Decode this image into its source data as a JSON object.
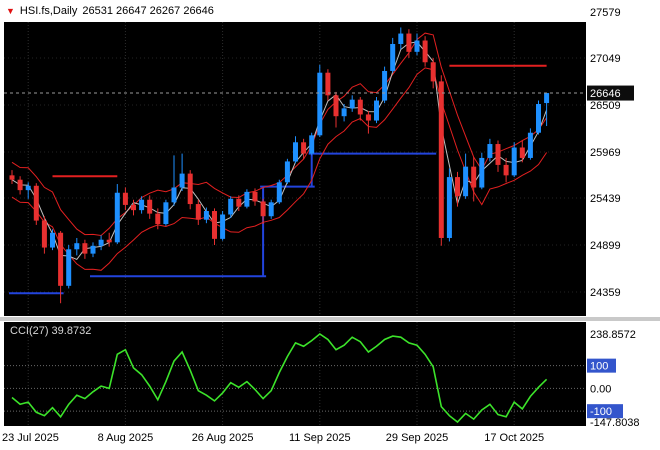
{
  "title": {
    "marker": "▼",
    "symbol_period": "HSI.fs,Daily",
    "ohlc_values": "26531 26647 26267 26646"
  },
  "colors": {
    "plot_bg": "#000000",
    "up_candle": "#1e90ff",
    "down_candle": "#e83030",
    "ma_fast": "#c0c0c0",
    "envelope": "#e32020",
    "step_line": "#2244dd",
    "hline": "#e32020",
    "cci_line": "#3ce32a",
    "level_badge": "#3355cc",
    "current_price_badge": "#0d0d0d"
  },
  "chart_data": {
    "type": "candlestick",
    "symbol": "HSI.fs",
    "period": "Daily",
    "main": {
      "price_axis_labels": [
        "27579",
        "27049",
        "26509",
        "25969",
        "25439",
        "24899",
        "24359"
      ],
      "current_price": "26646",
      "ohlc_display": {
        "open": "26531",
        "high": "26647",
        "low": "26267",
        "close": "26646"
      },
      "ma_fast_period": 3,
      "envelope_period": 6,
      "envelope_offset": 200,
      "candles": [
        [
          25700,
          25760,
          25600,
          25650
        ],
        [
          25650,
          25690,
          25480,
          25530
        ],
        [
          25530,
          25620,
          25430,
          25580
        ],
        [
          25580,
          25610,
          25130,
          25180
        ],
        [
          25180,
          25230,
          24800,
          24870
        ],
        [
          24870,
          25080,
          24840,
          25040
        ],
        [
          25040,
          25060,
          24230,
          24430
        ],
        [
          24430,
          24900,
          24400,
          24850
        ],
        [
          24850,
          24980,
          24780,
          24920
        ],
        [
          24920,
          24960,
          24740,
          24800
        ],
        [
          24800,
          24930,
          24760,
          24890
        ],
        [
          24890,
          25010,
          24840,
          24960
        ],
        [
          24960,
          25040,
          24880,
          24930
        ],
        [
          24930,
          25600,
          24910,
          25500
        ],
        [
          25500,
          25560,
          25300,
          25360
        ],
        [
          25360,
          25420,
          25240,
          25300
        ],
        [
          25300,
          25460,
          25260,
          25420
        ],
        [
          25420,
          25470,
          25200,
          25260
        ],
        [
          25260,
          25320,
          25080,
          25140
        ],
        [
          25140,
          25420,
          25120,
          25390
        ],
        [
          25390,
          25930,
          25350,
          25560
        ],
        [
          25560,
          25950,
          25520,
          25720
        ],
        [
          25720,
          25760,
          25310,
          25370
        ],
        [
          25370,
          25420,
          25130,
          25190
        ],
        [
          25190,
          25330,
          25150,
          25290
        ],
        [
          25290,
          25320,
          24900,
          24970
        ],
        [
          24970,
          25290,
          24950,
          25250
        ],
        [
          25250,
          25460,
          25210,
          25430
        ],
        [
          25430,
          25470,
          25290,
          25340
        ],
        [
          25340,
          25540,
          25320,
          25510
        ],
        [
          25510,
          25550,
          25350,
          25400
        ],
        [
          25400,
          25430,
          25140,
          25230
        ],
        [
          25230,
          25420,
          25200,
          25390
        ],
        [
          25390,
          25650,
          25370,
          25620
        ],
        [
          25620,
          25890,
          25600,
          25860
        ],
        [
          25860,
          26150,
          25840,
          26080
        ],
        [
          26080,
          26120,
          25890,
          25950
        ],
        [
          25950,
          26190,
          25930,
          26160
        ],
        [
          26160,
          26970,
          26140,
          26880
        ],
        [
          26880,
          26920,
          26560,
          26620
        ],
        [
          26620,
          26660,
          26250,
          26380
        ],
        [
          26380,
          26520,
          26320,
          26470
        ],
        [
          26470,
          26620,
          26430,
          26570
        ],
        [
          26570,
          26600,
          26330,
          26400
        ],
        [
          26400,
          26440,
          26180,
          26330
        ],
        [
          26330,
          26600,
          26300,
          26560
        ],
        [
          26560,
          26950,
          26530,
          26900
        ],
        [
          26900,
          27280,
          26880,
          27210
        ],
        [
          27210,
          27400,
          27150,
          27330
        ],
        [
          27330,
          27380,
          27050,
          27120
        ],
        [
          27120,
          27330,
          27080,
          27250
        ],
        [
          27250,
          27300,
          26950,
          27000
        ],
        [
          27000,
          27050,
          26700,
          26780
        ],
        [
          26780,
          26850,
          24890,
          24980
        ],
        [
          24980,
          25780,
          24940,
          25680
        ],
        [
          25680,
          25740,
          25340,
          25460
        ],
        [
          25460,
          25950,
          25430,
          25800
        ],
        [
          25800,
          25910,
          25400,
          25560
        ],
        [
          25560,
          25960,
          25540,
          25900
        ],
        [
          25900,
          26120,
          25860,
          26060
        ],
        [
          26060,
          26100,
          25740,
          25820
        ],
        [
          25820,
          25900,
          25620,
          25700
        ],
        [
          25700,
          26080,
          25680,
          26020
        ],
        [
          26020,
          26100,
          25850,
          25900
        ],
        [
          25900,
          26240,
          25880,
          26190
        ],
        [
          26190,
          26560,
          26170,
          26520
        ],
        [
          26531,
          26647,
          26267,
          26646
        ]
      ],
      "step_line_segments": [
        {
          "from": 0,
          "to": 6,
          "price": 24345
        },
        {
          "from": 10,
          "to": 31,
          "price": 24540
        },
        {
          "from": 31,
          "to": 37,
          "price": 25570
        },
        {
          "from": 37,
          "to": 52,
          "price": 25950
        }
      ],
      "red_hlines": [
        {
          "from": 5,
          "to": 13,
          "price": 25690
        },
        {
          "from": 54,
          "to": 66,
          "price": 26960
        }
      ]
    },
    "cci": {
      "label": "CCI(27) 39.8732",
      "levels": [
        100,
        0,
        -100
      ],
      "values": [
        -40,
        -70,
        -60,
        -105,
        -120,
        -85,
        -125,
        -70,
        -30,
        -45,
        -15,
        10,
        0,
        150,
        170,
        90,
        60,
        10,
        -50,
        30,
        120,
        160,
        80,
        -10,
        -30,
        -55,
        -20,
        25,
        5,
        30,
        -5,
        -45,
        -10,
        70,
        140,
        200,
        185,
        210,
        238.8572,
        215,
        170,
        190,
        225,
        205,
        160,
        185,
        215,
        230,
        225,
        200,
        190,
        150,
        95,
        -80,
        -120,
        -147.8038,
        -110,
        -135,
        -95,
        -70,
        -115,
        -125,
        -60,
        -90,
        -35,
        5,
        39.8732
      ],
      "axis_labels": [
        {
          "value": "238.8572",
          "badge": false
        },
        {
          "value": "100",
          "badge": true
        },
        {
          "value": "0.00",
          "badge": false
        },
        {
          "value": "-100",
          "badge": true
        },
        {
          "value": "-147.8038",
          "badge": false
        }
      ]
    },
    "x_ticks": [
      {
        "index": 2,
        "label": "23 Jul 2025"
      },
      {
        "index": 14,
        "label": "8 Aug 2025"
      },
      {
        "index": 26,
        "label": "26 Aug 2025"
      },
      {
        "index": 38,
        "label": "11 Sep 2025"
      },
      {
        "index": 50,
        "label": "29 Sep 2025"
      },
      {
        "index": 62,
        "label": "17 Oct 2025"
      }
    ]
  }
}
